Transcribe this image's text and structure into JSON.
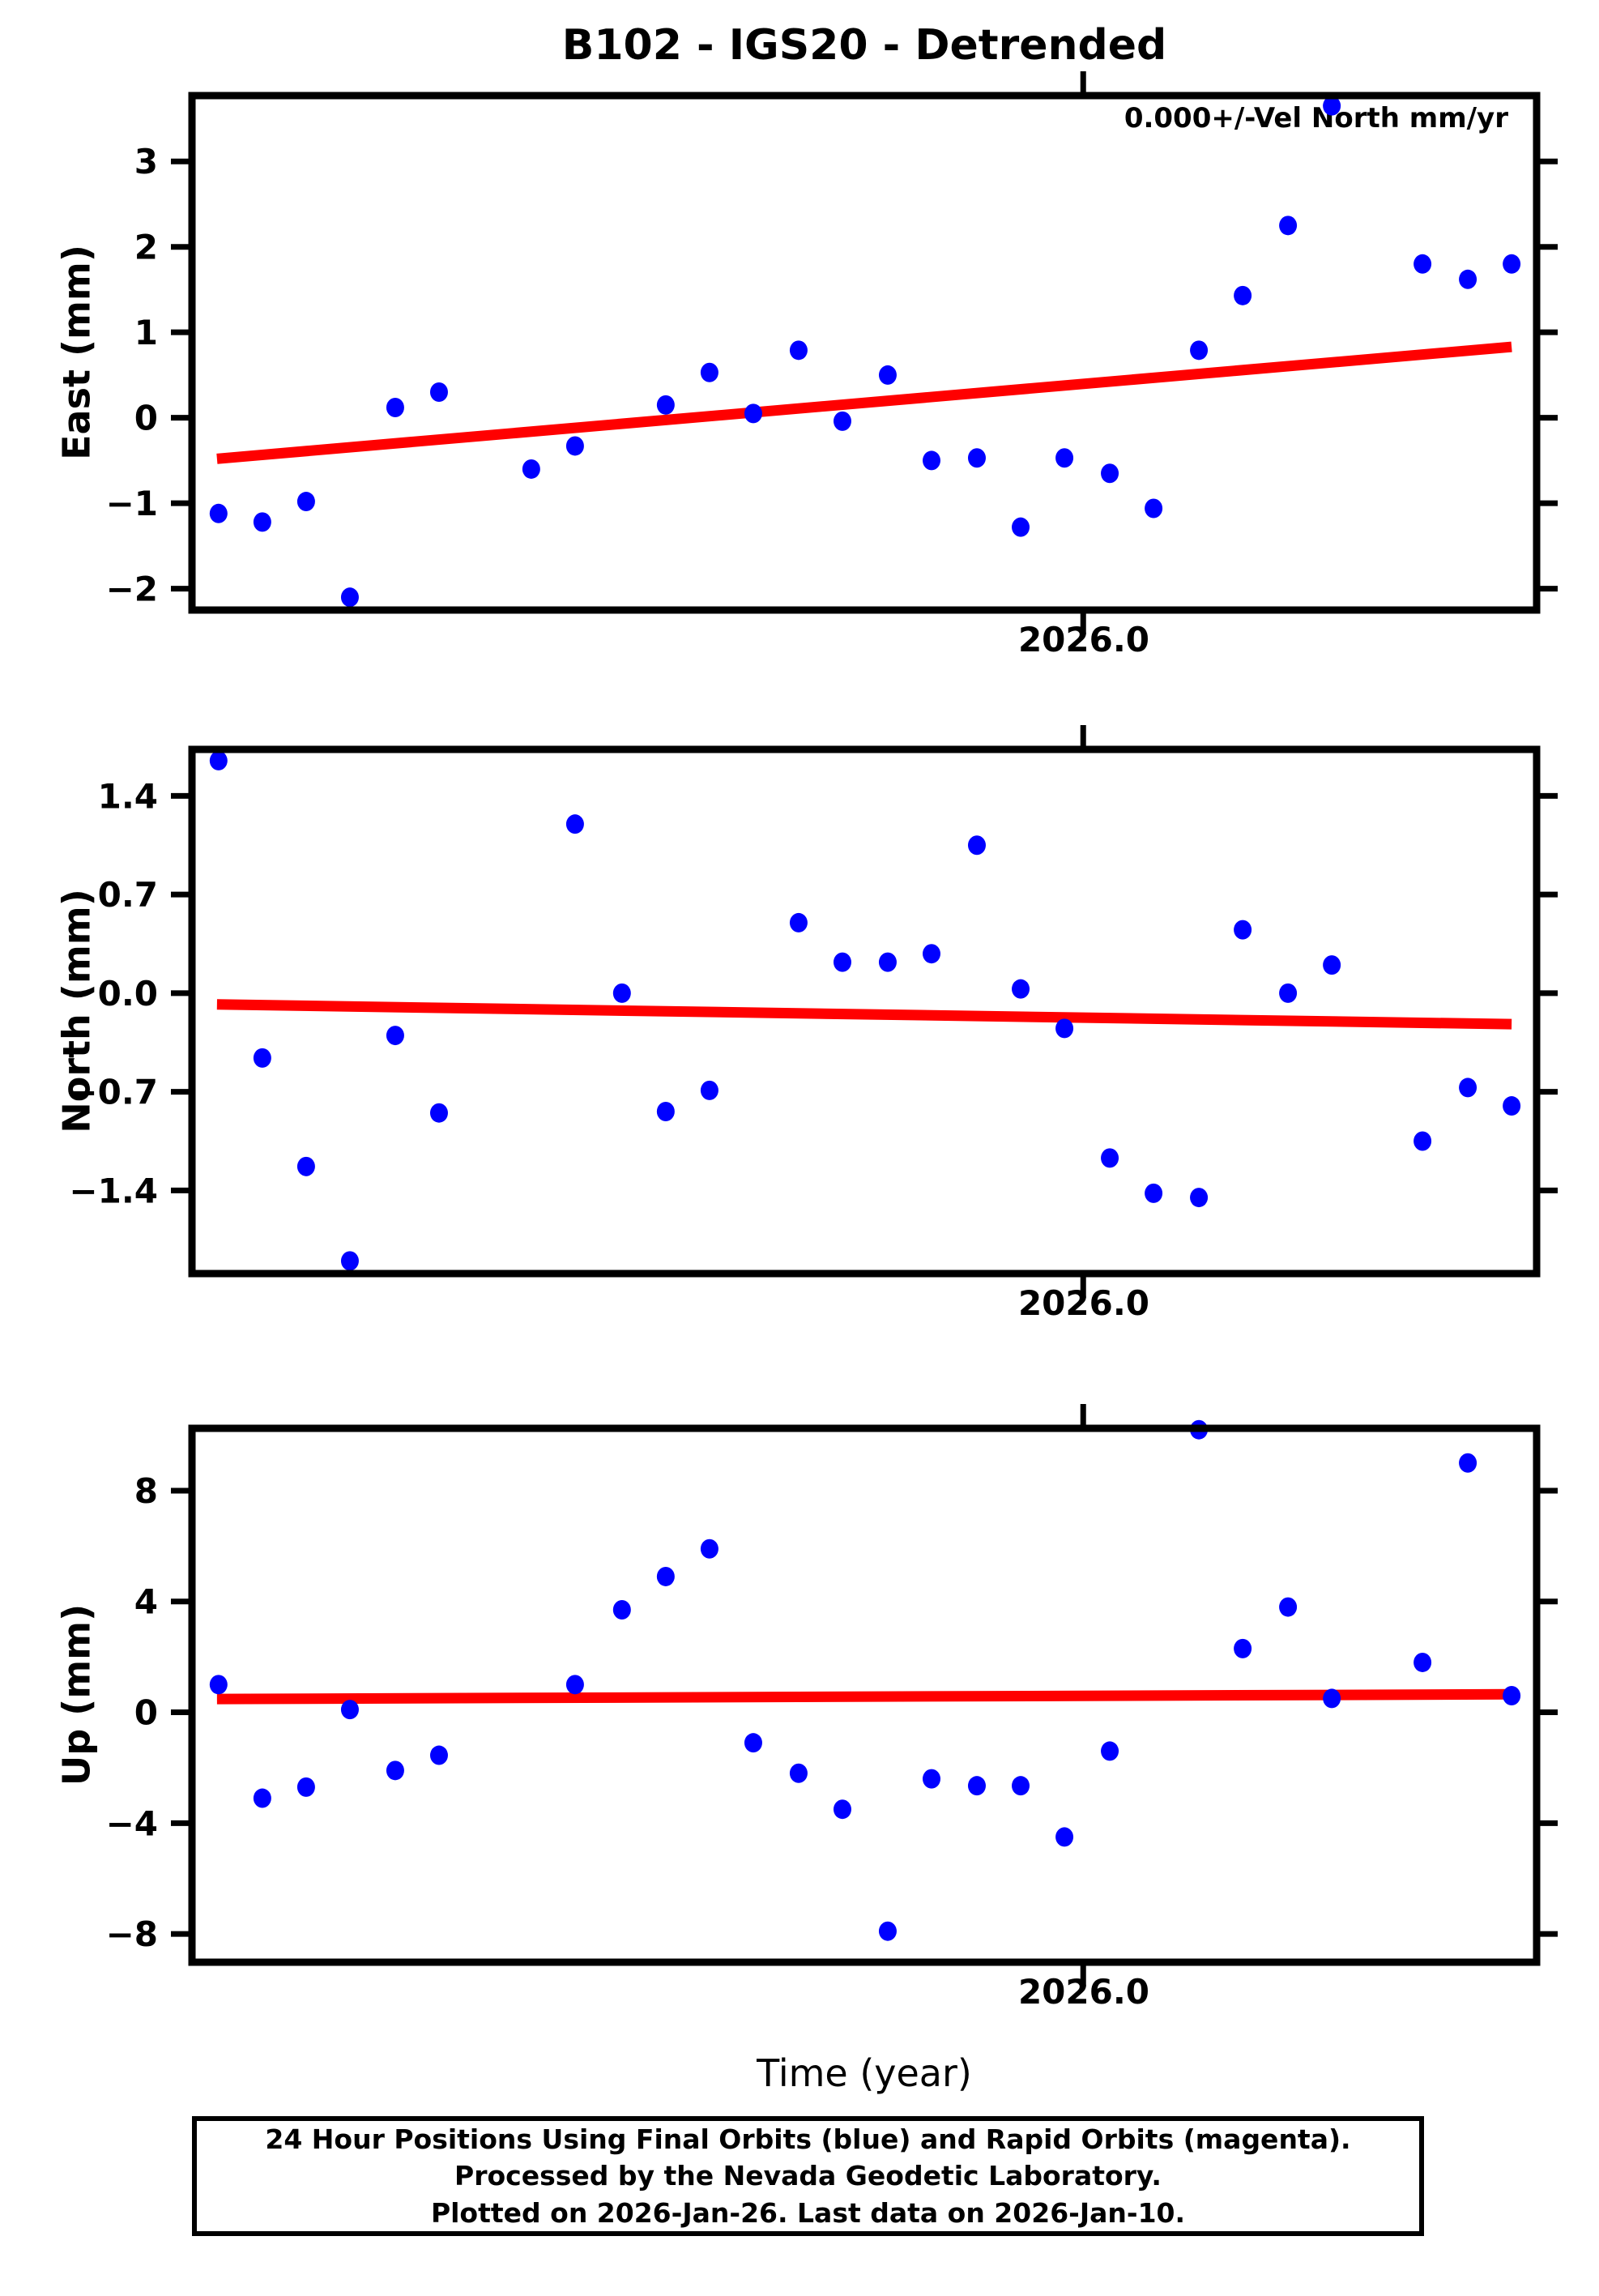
{
  "title": "B102 - IGS20 - Detrended",
  "annotation": "0.000+/-Vel North mm/yr",
  "xlabel": "Time (year)",
  "colors": {
    "point": "#0000ff",
    "trend": "#ff0000",
    "frame": "#000000",
    "background": "#ffffff"
  },
  "caption": {
    "line1": "24 Hour Positions Using Final Orbits (blue) and Rapid Orbits (magenta).",
    "line2": "Processed by the Nevada Geodetic Laboratory.",
    "line3": "Plotted on 2026-Jan-26. Last data on 2026-Jan-10."
  },
  "chart_data": [
    {
      "type": "scatter",
      "name": "east",
      "ylabel": "East (mm)",
      "xlabel_tick": "2026.0",
      "xtick_value": 2026.0,
      "xlim": [
        2025.943,
        2026.029
      ],
      "ylim": [
        -2.25,
        3.77
      ],
      "yticks": [
        3,
        2,
        1,
        0,
        -1,
        -2
      ],
      "ytick_labels": [
        "3",
        "2",
        "1",
        "0",
        "−1",
        "−2"
      ],
      "grid": false,
      "legend": "none",
      "x": [
        2025.9447,
        2025.9475,
        2025.9503,
        2025.9531,
        2025.956,
        2025.9588,
        2025.9647,
        2025.9675,
        2025.9733,
        2025.9761,
        2025.9789,
        2025.9818,
        2025.9846,
        2025.9875,
        2025.9903,
        2025.9932,
        2025.996,
        2025.9988,
        2026.0017,
        2026.0045,
        2026.0074,
        2026.0102,
        2026.0131,
        2026.0159,
        2026.0217,
        2026.0246,
        2026.0274
      ],
      "y": [
        -1.12,
        -1.22,
        -0.98,
        -2.1,
        0.12,
        0.3,
        -0.6,
        -0.33,
        0.15,
        0.53,
        0.05,
        0.79,
        -0.04,
        0.5,
        -0.5,
        -0.47,
        -1.28,
        -0.47,
        -0.65,
        -1.06,
        0.79,
        1.43,
        2.25,
        3.65,
        1.8,
        1.62,
        1.8
      ],
      "trend": {
        "x1": 2025.9446,
        "y1": -0.48,
        "x2": 2026.0274,
        "y2": 0.83
      }
    },
    {
      "type": "scatter",
      "name": "north",
      "ylabel": "North (mm)",
      "xlabel_tick": "2026.0",
      "xtick_value": 2026.0,
      "xlim": [
        2025.943,
        2026.029
      ],
      "ylim": [
        -1.99,
        1.73
      ],
      "yticks": [
        1.4,
        0.7,
        0.0,
        -0.7,
        -1.4
      ],
      "ytick_labels": [
        "1.4",
        "0.7",
        "0.0",
        "−0.7",
        "−1.4"
      ],
      "grid": false,
      "legend": "none",
      "x": [
        2025.9447,
        2025.9475,
        2025.9503,
        2025.9531,
        2025.956,
        2025.9588,
        2025.9675,
        2025.9705,
        2025.9733,
        2025.9761,
        2025.9818,
        2025.9846,
        2025.9875,
        2025.9903,
        2025.9932,
        2025.996,
        2025.9988,
        2026.0017,
        2026.0045,
        2026.0074,
        2026.0102,
        2026.0131,
        2026.0159,
        2026.0217,
        2026.0246,
        2026.0274
      ],
      "y": [
        1.65,
        -0.46,
        -1.23,
        -1.9,
        -0.3,
        -0.85,
        1.2,
        0.0,
        -0.84,
        -0.69,
        0.5,
        0.22,
        0.22,
        0.28,
        1.05,
        0.03,
        -0.25,
        -1.17,
        -1.42,
        -1.45,
        0.45,
        0.0,
        0.2,
        -1.05,
        -0.67,
        -0.8
      ],
      "trend": {
        "x1": 2025.9446,
        "y1": -0.08,
        "x2": 2026.0274,
        "y2": -0.22
      }
    },
    {
      "type": "scatter",
      "name": "up",
      "ylabel": "Up (mm)",
      "xlabel_tick": "2026.0",
      "xtick_value": 2026.0,
      "xlim": [
        2025.943,
        2026.029
      ],
      "ylim": [
        -9.02,
        10.25
      ],
      "yticks": [
        8,
        4,
        0,
        -4,
        -8
      ],
      "ytick_labels": [
        "8",
        "4",
        "0",
        "−4",
        "−8"
      ],
      "grid": false,
      "legend": "none",
      "x": [
        2025.9447,
        2025.9475,
        2025.9503,
        2025.9531,
        2025.956,
        2025.9588,
        2025.9675,
        2025.9705,
        2025.9733,
        2025.9761,
        2025.9789,
        2025.9818,
        2025.9846,
        2025.9875,
        2025.9903,
        2025.9932,
        2025.996,
        2025.9988,
        2026.0017,
        2026.0074,
        2026.0102,
        2026.0131,
        2026.0159,
        2026.0217,
        2026.0246,
        2026.0274
      ],
      "y": [
        1.0,
        -3.1,
        -2.7,
        0.1,
        -2.1,
        -1.55,
        1.0,
        3.7,
        4.9,
        5.9,
        -1.1,
        -2.2,
        -3.5,
        -7.9,
        -2.4,
        -2.65,
        -2.65,
        -4.5,
        -1.4,
        10.2,
        2.3,
        3.8,
        0.5,
        1.8,
        9.0,
        0.6
      ],
      "trend": {
        "x1": 2025.9446,
        "y1": 0.48,
        "x2": 2026.0274,
        "y2": 0.65
      }
    }
  ]
}
